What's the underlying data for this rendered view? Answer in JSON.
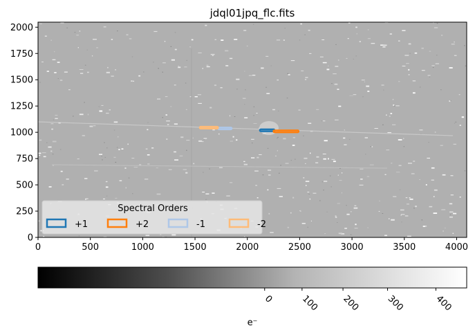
{
  "chart_data": {
    "type": "heatmap",
    "title": "jdql01jpq_flc.fits",
    "xlim": [
      0,
      4096
    ],
    "ylim": [
      0,
      2048
    ],
    "x_ticks": [
      0,
      500,
      1000,
      1500,
      2000,
      2500,
      3000,
      3500,
      4000
    ],
    "y_ticks": [
      0,
      250,
      500,
      750,
      1000,
      1250,
      1500,
      1750,
      2000
    ],
    "colormap": "gray",
    "colorbar": {
      "label": "e⁻",
      "ticks": [
        {
          "label": "0",
          "value": 0
        },
        {
          "label": "100",
          "value": 100
        },
        {
          "label": "200",
          "value": 200
        },
        {
          "label": "300",
          "value": 300
        },
        {
          "label": "400",
          "value": 400
        }
      ],
      "orientation": "horizontal"
    },
    "legend": {
      "title": "Spectral Orders",
      "placement": "lower-left",
      "entries": [
        {
          "label": "+1",
          "color": "#1f77b4"
        },
        {
          "label": "+2",
          "color": "#ff7f0e"
        },
        {
          "label": "-1",
          "color": "#aec7e8"
        },
        {
          "label": "-2",
          "color": "#ffbb78"
        }
      ]
    },
    "regions": [
      {
        "order": "+1",
        "color": "#1f77b4",
        "x0": 2120,
        "x1": 2260,
        "y0": 1010,
        "y1": 1028
      },
      {
        "order": "+2",
        "color": "#ff7f0e",
        "x0": 2250,
        "x1": 2490,
        "y0": 1000,
        "y1": 1018
      },
      {
        "order": "-1",
        "color": "#aec7e8",
        "x0": 1720,
        "x1": 1850,
        "y0": 1028,
        "y1": 1046
      },
      {
        "order": "-2",
        "color": "#ffbb78",
        "x0": 1545,
        "x1": 1720,
        "y0": 1035,
        "y1": 1053
      }
    ]
  }
}
